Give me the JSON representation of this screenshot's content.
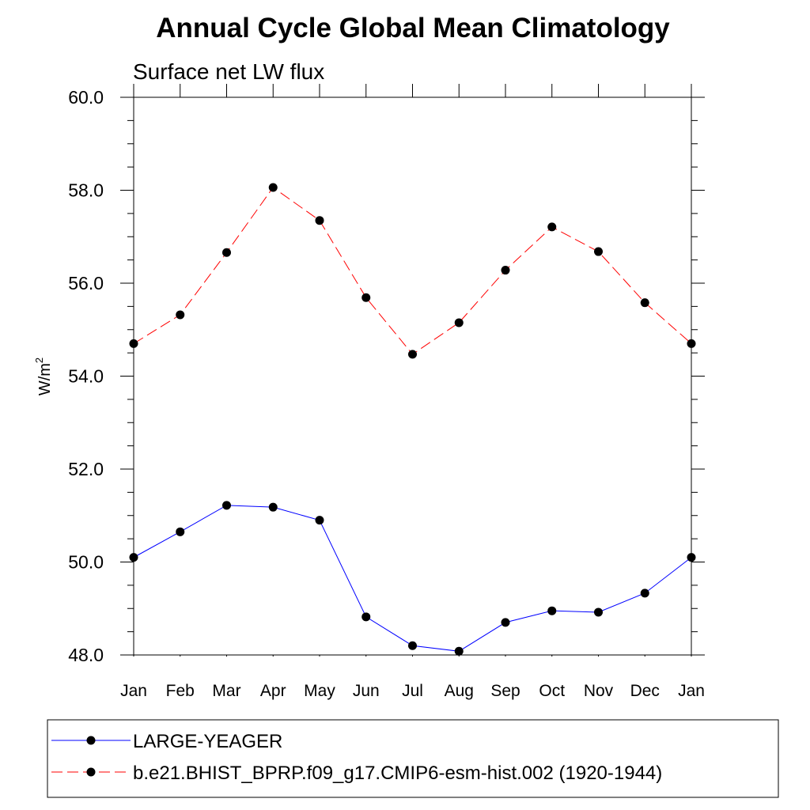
{
  "chart_data": {
    "type": "line",
    "title": "Annual Cycle Global Mean Climatology",
    "subtitle": "Surface net LW flux",
    "ylabel": "W/m",
    "ylabel_superscript": "2",
    "xlabel": "",
    "categories": [
      "Jan",
      "Feb",
      "Mar",
      "Apr",
      "May",
      "Jun",
      "Jul",
      "Aug",
      "Sep",
      "Oct",
      "Nov",
      "Dec",
      "Jan"
    ],
    "ylim": [
      48.0,
      60.0
    ],
    "yticks": [
      "48.0",
      "50.0",
      "52.0",
      "54.0",
      "56.0",
      "58.0",
      "60.0"
    ],
    "grid": false,
    "legend_position": "bottom",
    "series": [
      {
        "name": "LARGE-YEAGER",
        "color": "#0000ff",
        "line_style": "solid",
        "marker": "filled-circle",
        "values": [
          50.1,
          50.65,
          51.22,
          51.18,
          50.9,
          48.82,
          48.2,
          48.08,
          48.7,
          48.95,
          48.92,
          49.33,
          50.1
        ]
      },
      {
        "name": "b.e21.BHIST_BPRP.f09_g17.CMIP6-esm-hist.002 (1920-1944)",
        "color": "#ff0000",
        "line_style": "dashed",
        "marker": "filled-circle",
        "values": [
          54.7,
          55.32,
          56.66,
          58.06,
          57.35,
          55.69,
          54.47,
          55.15,
          56.28,
          57.21,
          56.68,
          55.58,
          54.7
        ]
      }
    ]
  }
}
